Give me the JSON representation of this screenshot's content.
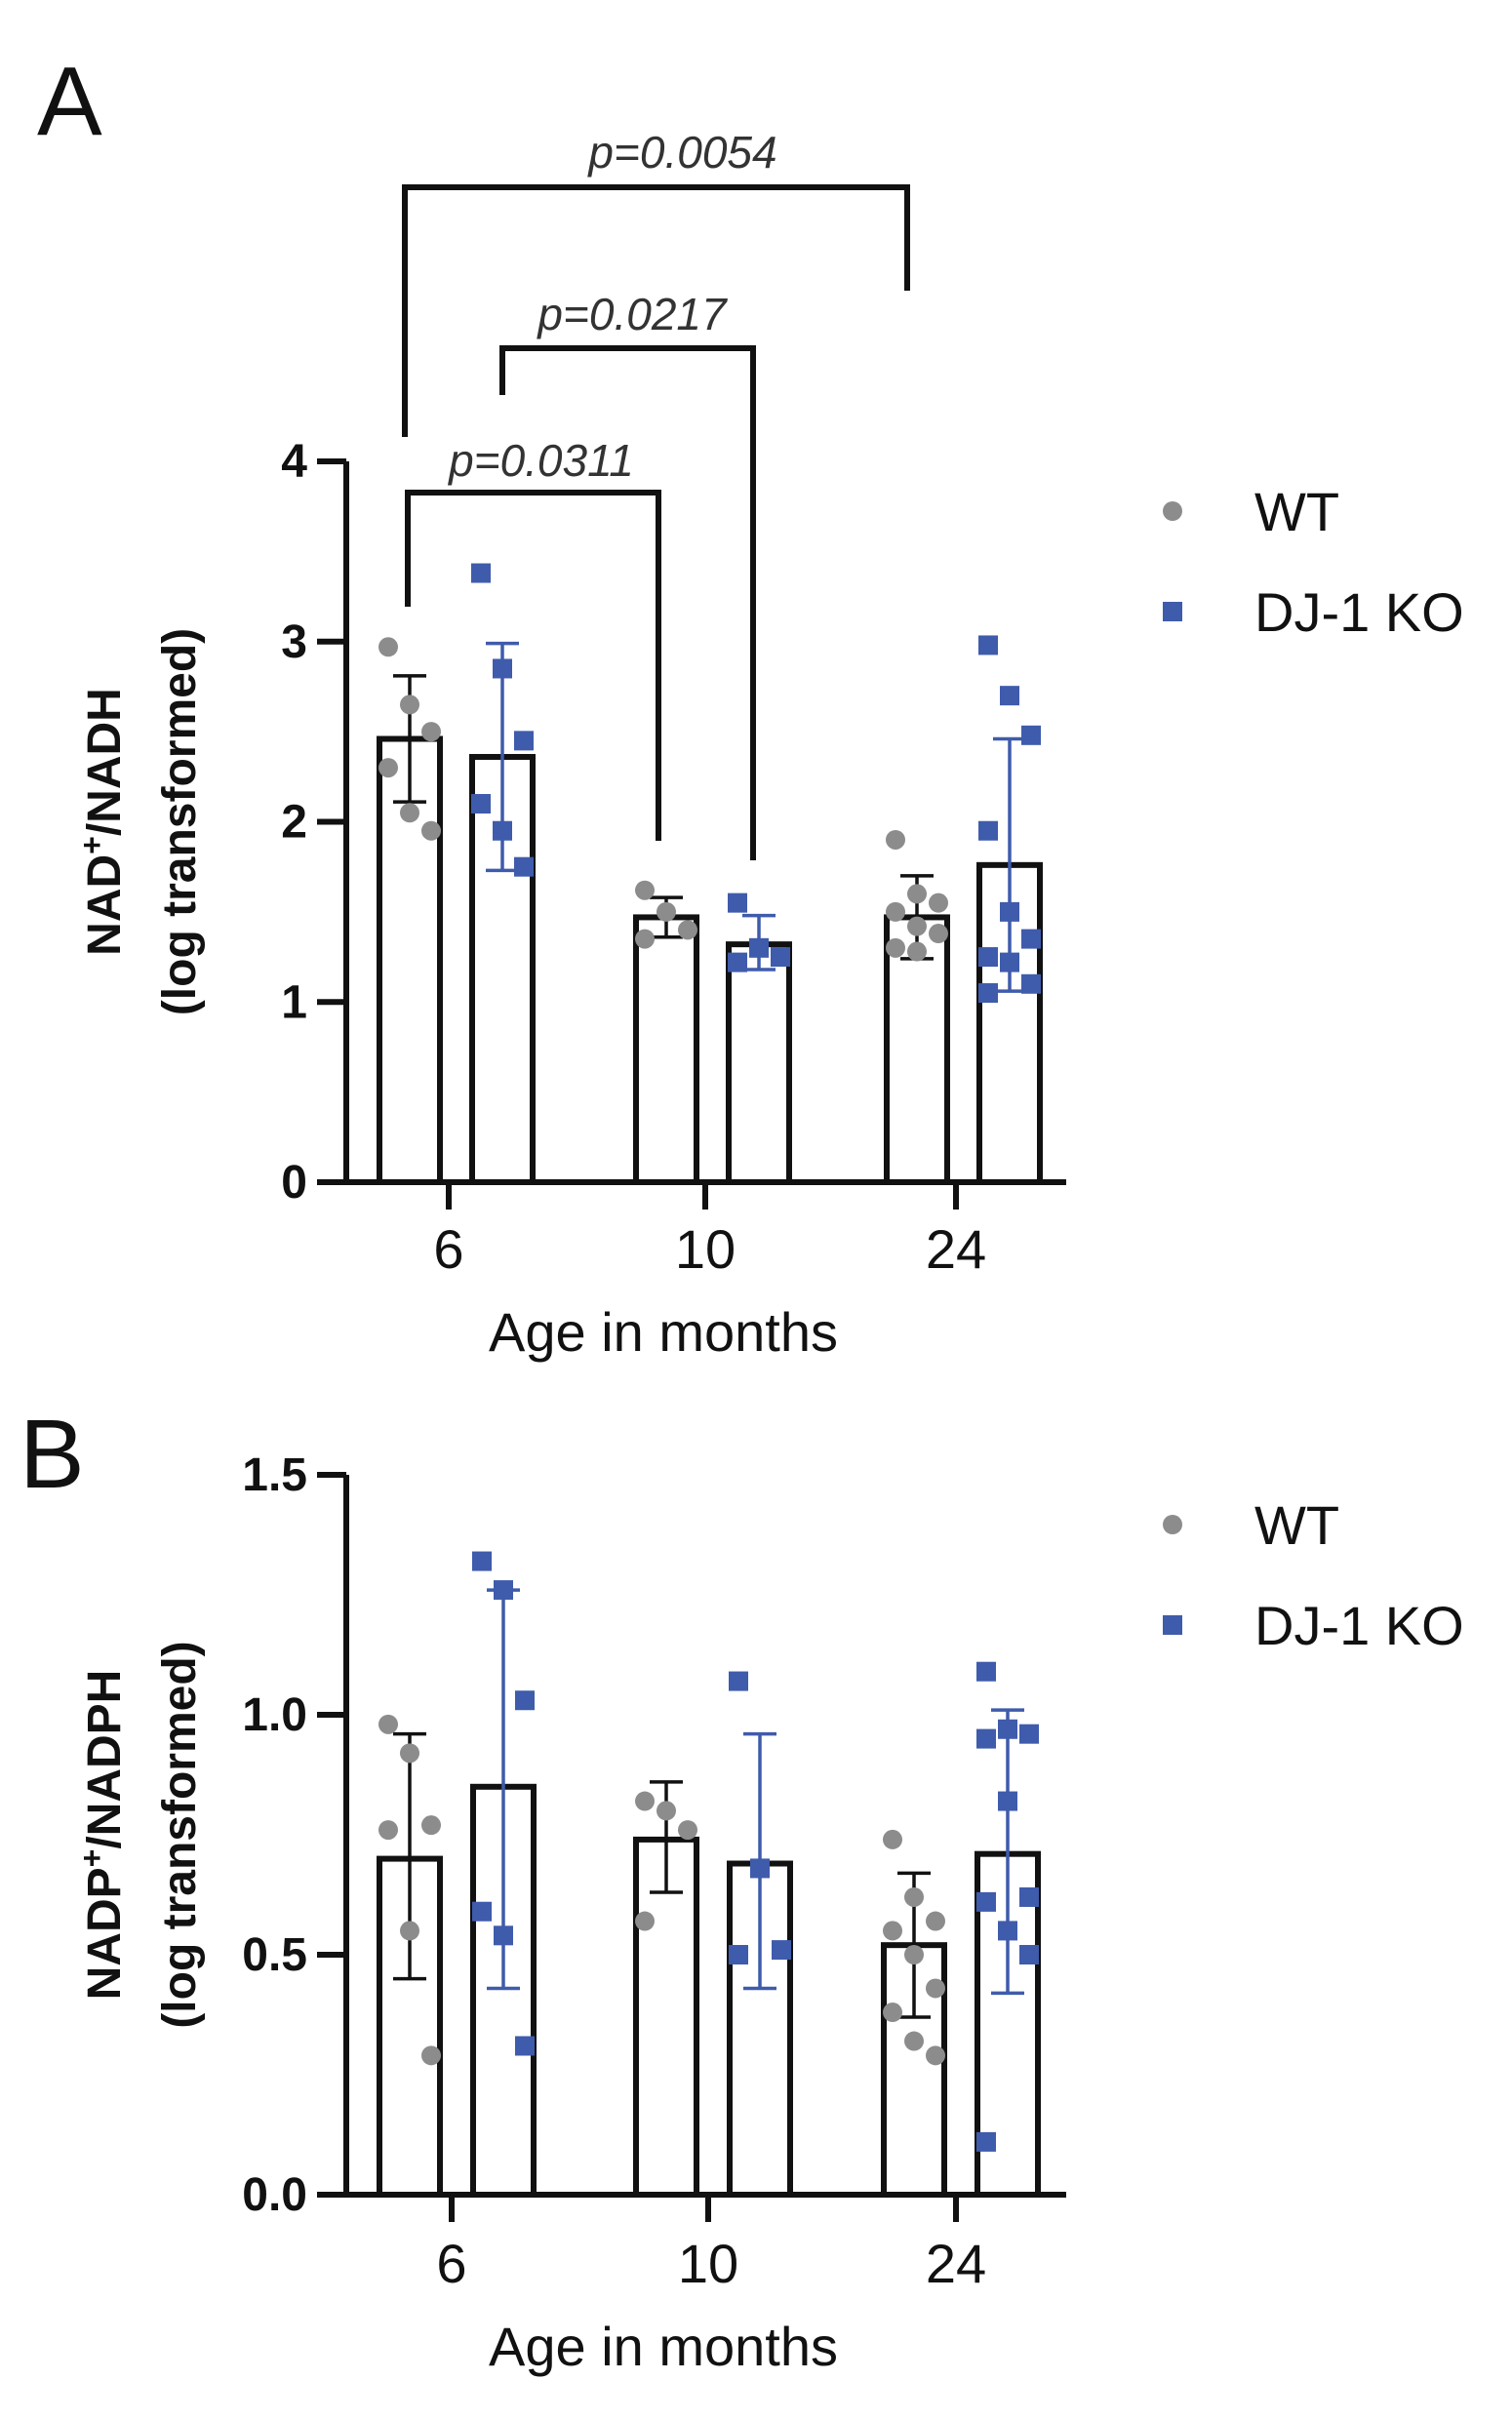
{
  "colors": {
    "wt": "#8c8c8c",
    "ko": "#3f5bab",
    "axis": "#111111"
  },
  "chart_data": [
    {
      "type": "bar",
      "panel_label": "A",
      "categories": [
        "6",
        "10",
        "24"
      ],
      "xlabel": "Age in months",
      "ylabel_main": "NAD",
      "ylabel_sup": "+",
      "ylabel_rest": "/NADH",
      "ylabel_line2": "(log transformed)",
      "ylim": [
        0,
        4
      ],
      "yticks": [
        "0",
        "1",
        "2",
        "3",
        "4"
      ],
      "ytick_values": [
        0,
        1,
        2,
        3,
        4
      ],
      "legend": [
        "WT",
        "DJ-1 KO"
      ],
      "series": [
        {
          "name": "WT",
          "means": [
            2.46,
            1.47,
            1.47
          ],
          "errors": [
            [
              2.11,
              2.81
            ],
            [
              1.36,
              1.58
            ],
            [
              1.24,
              1.7
            ]
          ],
          "points": [
            [
              2.97,
              2.65,
              2.5,
              2.3,
              2.05,
              1.95
            ],
            [
              1.62,
              1.5,
              1.4,
              1.35
            ],
            [
              1.9,
              1.6,
              1.55,
              1.5,
              1.42,
              1.38,
              1.3,
              1.28
            ]
          ]
        },
        {
          "name": "DJ-1 KO",
          "means": [
            2.36,
            1.32,
            1.76
          ],
          "errors": [
            [
              1.73,
              2.99
            ],
            [
              1.18,
              1.48
            ],
            [
              1.06,
              2.46
            ]
          ],
          "points": [
            [
              3.38,
              2.85,
              2.45,
              2.1,
              1.95,
              1.75
            ],
            [
              1.55,
              1.3,
              1.25,
              1.22
            ],
            [
              2.98,
              2.7,
              2.48,
              1.95,
              1.5,
              1.35,
              1.25,
              1.22,
              1.1,
              1.05
            ]
          ]
        }
      ],
      "annotations": [
        "p=0.0311",
        "p=0.0217",
        "p=0.0054"
      ]
    },
    {
      "type": "bar",
      "panel_label": "B",
      "categories": [
        "6",
        "10",
        "24"
      ],
      "xlabel": "Age in months",
      "ylabel_main": "NADP",
      "ylabel_sup": "+",
      "ylabel_rest": "/NADPH",
      "ylabel_line2": "(log transformed)",
      "ylim": [
        0,
        1.5
      ],
      "yticks": [
        "0.0",
        "0.5",
        "1.0",
        "1.5"
      ],
      "ytick_values": [
        0,
        0.5,
        1.0,
        1.5
      ],
      "legend": [
        "WT",
        "DJ-1 KO"
      ],
      "series": [
        {
          "name": "WT",
          "means": [
            0.7,
            0.74,
            0.52
          ],
          "errors": [
            [
              0.45,
              0.96
            ],
            [
              0.63,
              0.86
            ],
            [
              0.37,
              0.67
            ]
          ],
          "points": [
            [
              0.98,
              0.92,
              0.77,
              0.76,
              0.55,
              0.29
            ],
            [
              0.82,
              0.8,
              0.76,
              0.57
            ],
            [
              0.74,
              0.62,
              0.57,
              0.55,
              0.5,
              0.43,
              0.38,
              0.32,
              0.29
            ]
          ]
        },
        {
          "name": "DJ-1 KO",
          "means": [
            0.85,
            0.69,
            0.71
          ],
          "errors": [
            [
              0.43,
              1.26
            ],
            [
              0.43,
              0.96
            ],
            [
              0.42,
              1.01
            ]
          ],
          "points": [
            [
              1.32,
              1.26,
              1.03,
              0.59,
              0.54,
              0.31
            ],
            [
              1.07,
              0.68,
              0.51,
              0.5
            ],
            [
              1.09,
              0.97,
              0.96,
              0.95,
              0.82,
              0.62,
              0.61,
              0.55,
              0.5,
              0.11
            ]
          ]
        }
      ]
    }
  ]
}
